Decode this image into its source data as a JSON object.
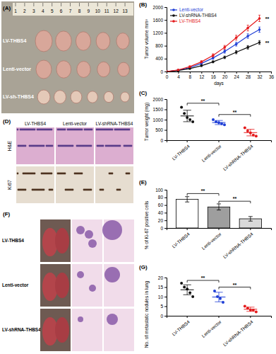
{
  "chart_data": [
    {
      "type": "image",
      "title": "(A)",
      "ruler": [
        1,
        2,
        3,
        4,
        5,
        6,
        7,
        8,
        9,
        10,
        11,
        12,
        13
      ],
      "labels": [
        "LV-THBS4",
        "Lenti-vector",
        "LV-sh-THBS4"
      ]
    },
    {
      "type": "line",
      "title": "(B)",
      "x_label": "days",
      "y_label": "Tumor volume mm³",
      "x": [
        0,
        4,
        8,
        12,
        16,
        20,
        24,
        28,
        32
      ],
      "xlim": [
        0,
        36
      ],
      "xticks": [
        0,
        4,
        8,
        12,
        16,
        20,
        24,
        28,
        32,
        36
      ],
      "ylim": [
        0,
        2000
      ],
      "yticks": [
        0,
        400,
        800,
        1200,
        1600,
        2000
      ],
      "legend": "upper left",
      "marker": "circle",
      "series": [
        {
          "name": "Lenti-vector",
          "color": "#1f3fd6",
          "values": [
            0,
            40,
            120,
            250,
            420,
            620,
            850,
            1100,
            1300
          ],
          "errors": [
            0,
            10,
            20,
            30,
            40,
            50,
            60,
            70,
            80
          ]
        },
        {
          "name": "LV-shRNA-THBS4",
          "color": "#111111",
          "values": [
            0,
            30,
            90,
            180,
            300,
            440,
            600,
            750,
            900
          ],
          "errors": [
            0,
            8,
            15,
            25,
            30,
            40,
            50,
            55,
            60
          ]
        },
        {
          "name": "LV-THBS4",
          "color": "#e41a1c",
          "values": [
            0,
            50,
            150,
            300,
            500,
            750,
            1050,
            1350,
            1650
          ],
          "errors": [
            0,
            12,
            25,
            35,
            50,
            60,
            75,
            90,
            100
          ]
        }
      ],
      "annotations": [
        {
          "text": "**",
          "x": 34,
          "y": 1650
        },
        {
          "text": "**",
          "x": 34,
          "y": 900
        }
      ]
    },
    {
      "type": "dot",
      "title": "(C)",
      "y_label": "Tumor weight (mg)",
      "categories": [
        "LV-THBS4",
        "Lenti-vector",
        "LV-shRNA-THBS4"
      ],
      "colors": [
        "#111111",
        "#1f3fd6",
        "#e41a1c"
      ],
      "points": [
        [
          1600,
          1300,
          1100,
          1000,
          900
        ],
        [
          1000,
          900,
          850,
          800,
          750
        ],
        [
          600,
          450,
          350,
          250,
          200
        ]
      ],
      "means": [
        1180,
        860,
        370
      ],
      "errors": [
        280,
        100,
        160
      ],
      "ylim": [
        0,
        2000
      ],
      "yticks": [
        0,
        500,
        1000,
        1500,
        2000
      ],
      "annotations": [
        {
          "text": "**",
          "between": [
            0,
            1
          ],
          "y": 1800
        },
        {
          "text": "**",
          "between": [
            1,
            2
          ],
          "y": 1250
        }
      ]
    },
    {
      "type": "image",
      "title": "(D)",
      "columns": [
        "LV-THBS4",
        "Lenti-vector",
        "LV-shRNA-THBS4"
      ],
      "rows": [
        "H&E",
        "Ki67"
      ]
    },
    {
      "type": "bar",
      "title": "(E)",
      "y_label": "% of Ki-67 positive cells",
      "categories": [
        "LV-THBS4",
        "Lenti-vector",
        "LV-shRNA-THBS4"
      ],
      "values": [
        75,
        55,
        24
      ],
      "errors": [
        7,
        8,
        6
      ],
      "colors": [
        "#ffffff",
        "#9e9e9e",
        "#d9d9d9"
      ],
      "ylim": [
        0,
        100
      ],
      "yticks": [
        0,
        20,
        40,
        60,
        80,
        100
      ],
      "annotations": [
        {
          "text": "**",
          "between": [
            0,
            1
          ],
          "y": 90
        },
        {
          "text": "**",
          "between": [
            1,
            2
          ],
          "y": 70
        }
      ]
    },
    {
      "type": "image",
      "title": "(F)",
      "labels": [
        "LV-THBS4",
        "Lenti-vector",
        "LV-shRNA-THBS4"
      ]
    },
    {
      "type": "dot",
      "title": "(G)",
      "y_label": "No. of metastatic nodules in lung",
      "categories": [
        "LV-THBS4",
        "Lenti-vector",
        "LV-shRNA-THBS4"
      ],
      "colors": [
        "#111111",
        "#1f3fd6",
        "#e41a1c"
      ],
      "points": [
        [
          17,
          15,
          14,
          12,
          10
        ],
        [
          13,
          10,
          9,
          7
        ],
        [
          5,
          4,
          3,
          3,
          2
        ]
      ],
      "means": [
        13.6,
        9.8,
        3.4
      ],
      "errors": [
        2.6,
        2.5,
        1.1
      ],
      "ylim": [
        0,
        20
      ],
      "yticks": [
        0,
        5,
        10,
        15,
        20
      ],
      "annotations": [
        {
          "text": "**",
          "between": [
            0,
            1
          ],
          "y": 18.5
        },
        {
          "text": "**",
          "between": [
            1,
            2
          ],
          "y": 15
        }
      ]
    }
  ]
}
